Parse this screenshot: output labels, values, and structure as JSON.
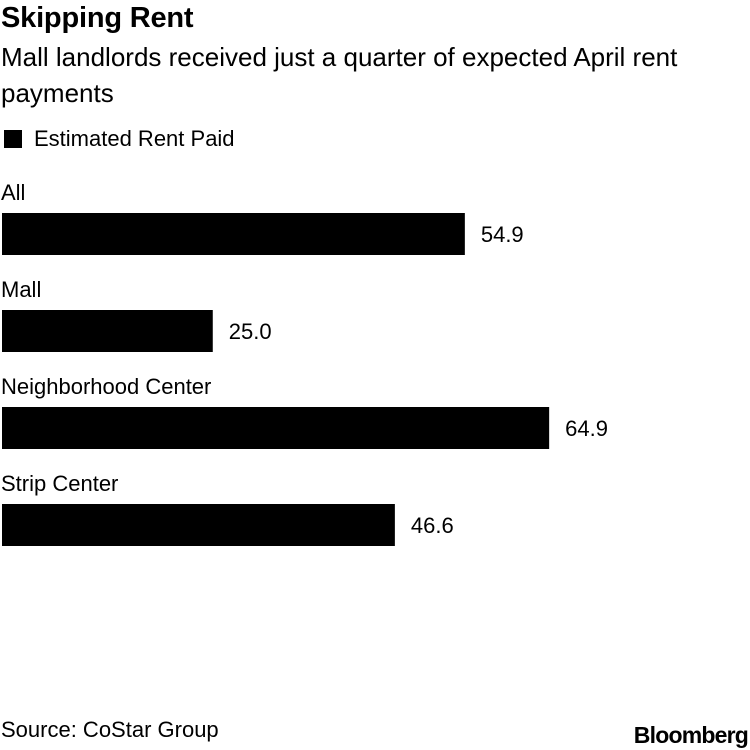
{
  "header": {
    "title": "Skipping Rent",
    "subtitle": "Mall landlords received just a quarter of expected April rent payments"
  },
  "legend": {
    "label": "Estimated Rent Paid"
  },
  "colors": {
    "bar": "#000000",
    "text": "#000000",
    "background": "#ffffff"
  },
  "chart_data": {
    "type": "bar",
    "orientation": "horizontal",
    "categories": [
      "All",
      "Mall",
      "Neighborhood Center",
      "Strip Center"
    ],
    "series": [
      {
        "name": "Estimated Rent Paid",
        "values": [
          54.9,
          25.0,
          64.9,
          46.6
        ]
      }
    ],
    "value_labels": [
      "54.9",
      "25.0",
      "64.9",
      "46.6"
    ],
    "xlim": [
      0,
      65
    ],
    "grid": false,
    "legend": "top-left"
  },
  "footer": {
    "source": "Source: CoStar Group",
    "brand": "Bloomberg"
  }
}
